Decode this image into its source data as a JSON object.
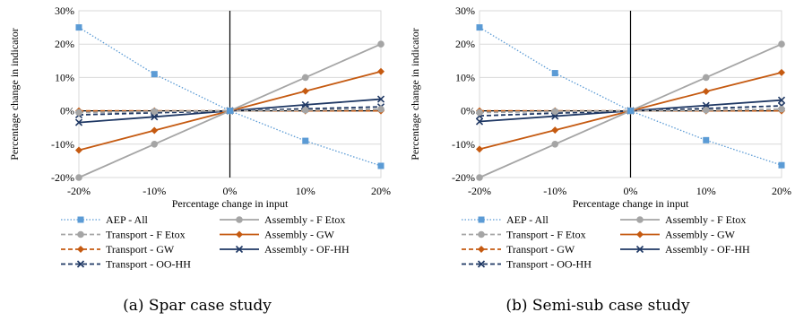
{
  "chart_data": [
    {
      "type": "line",
      "x": [
        "-20%",
        "-10%",
        "0%",
        "10%",
        "20%"
      ],
      "xlabel": "Percentage change in input",
      "ylabel": "Percentage change in indicator",
      "ylim": [
        -20,
        30
      ],
      "yticks": [
        "-20%",
        "-10%",
        "0%",
        "10%",
        "20%",
        "30%"
      ],
      "grid": "horizontal",
      "legend_position": "bottom",
      "caption": "(a) Spar case study",
      "series": [
        {
          "name": "AEP - All",
          "values": [
            25,
            11,
            0,
            -9,
            -16.5
          ],
          "color": "#5b9bd5",
          "dash": "dotted",
          "marker": "square"
        },
        {
          "name": "Assembly - F Etox",
          "values": [
            -20,
            -10,
            0,
            10,
            20
          ],
          "color": "#a5a5a5",
          "dash": "solid",
          "marker": "circle"
        },
        {
          "name": "Transport - F Etox",
          "values": [
            -0.5,
            -0.2,
            0,
            0.2,
            0.5
          ],
          "color": "#a5a5a5",
          "dash": "dashed",
          "marker": "circle"
        },
        {
          "name": "Assembly - GW",
          "values": [
            -11.8,
            -5.9,
            0,
            5.9,
            11.8
          ],
          "color": "#c55a11",
          "dash": "solid",
          "marker": "diamond"
        },
        {
          "name": "Transport - GW",
          "values": [
            0,
            0,
            0,
            0,
            0
          ],
          "color": "#c55a11",
          "dash": "dashed",
          "marker": "diamond"
        },
        {
          "name": "Assembly - OF-HH",
          "values": [
            -3.5,
            -1.8,
            0,
            1.8,
            3.5
          ],
          "color": "#1f3864",
          "dash": "solid",
          "marker": "x"
        },
        {
          "name": "Transport - OO-HH",
          "values": [
            -1.2,
            -0.6,
            0,
            0.6,
            1.2
          ],
          "color": "#1f3864",
          "dash": "dashed",
          "marker": "x"
        }
      ]
    },
    {
      "type": "line",
      "x": [
        "-20%",
        "-10%",
        "0%",
        "10%",
        "20%"
      ],
      "xlabel": "Percentage change in input",
      "ylabel": "Percentage change in indicator",
      "ylim": [
        -20,
        30
      ],
      "yticks": [
        "-20%",
        "-10%",
        "0%",
        "10%",
        "20%",
        "30%"
      ],
      "grid": "horizontal",
      "legend_position": "bottom",
      "caption": "(b) Semi-sub case study",
      "series": [
        {
          "name": "AEP - All",
          "values": [
            25,
            11.3,
            0,
            -8.8,
            -16.3
          ],
          "color": "#5b9bd5",
          "dash": "dotted",
          "marker": "square"
        },
        {
          "name": "Assembly - F Etox",
          "values": [
            -20,
            -10,
            0,
            10,
            20
          ],
          "color": "#a5a5a5",
          "dash": "solid",
          "marker": "circle"
        },
        {
          "name": "Transport - F Etox",
          "values": [
            -0.5,
            -0.2,
            0,
            0.2,
            0.5
          ],
          "color": "#a5a5a5",
          "dash": "dashed",
          "marker": "circle"
        },
        {
          "name": "Assembly - GW",
          "values": [
            -11.5,
            -5.8,
            0,
            5.8,
            11.5
          ],
          "color": "#c55a11",
          "dash": "solid",
          "marker": "diamond"
        },
        {
          "name": "Transport - GW",
          "values": [
            0,
            0,
            0,
            0,
            0
          ],
          "color": "#c55a11",
          "dash": "dashed",
          "marker": "diamond"
        },
        {
          "name": "Assembly - OF-HH",
          "values": [
            -3.2,
            -1.6,
            0,
            1.6,
            3.2
          ],
          "color": "#1f3864",
          "dash": "solid",
          "marker": "x"
        },
        {
          "name": "Transport - OO-HH",
          "values": [
            -1.5,
            -0.7,
            0,
            0.7,
            1.5
          ],
          "color": "#1f3864",
          "dash": "dashed",
          "marker": "x"
        }
      ]
    }
  ]
}
